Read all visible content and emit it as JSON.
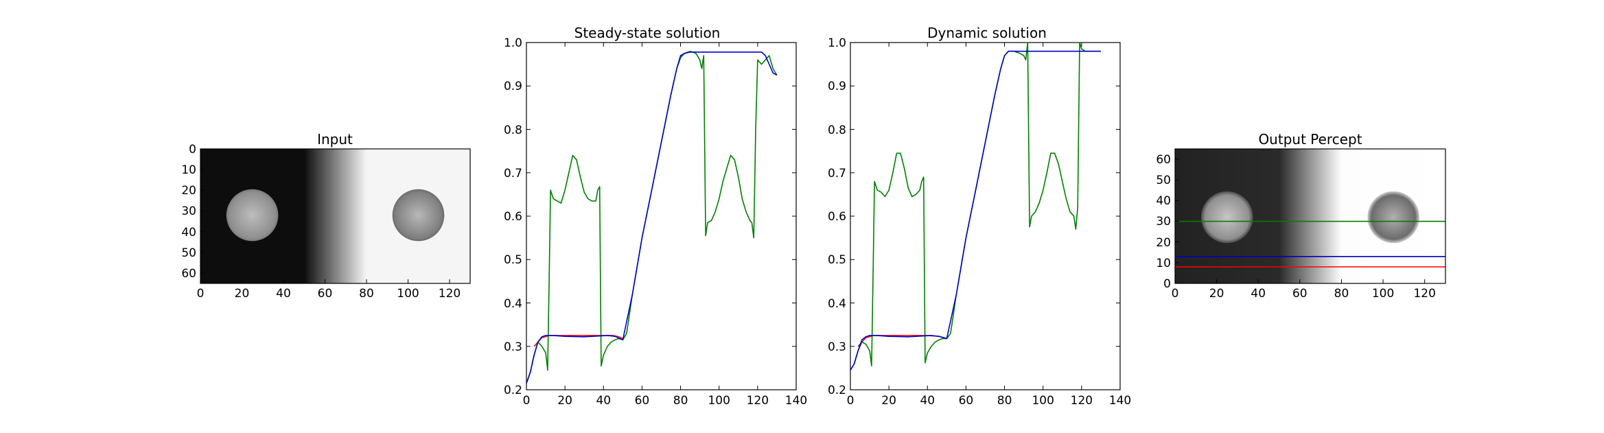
{
  "colors": {
    "red": "#ff0000",
    "blue": "#0000cc",
    "green": "#007f00",
    "axis": "#000000"
  },
  "chart_data": [
    {
      "type": "heatmap",
      "title": "Input",
      "xlim": [
        0,
        130
      ],
      "ylim": [
        65,
        0
      ],
      "xticks": [
        "0",
        "20",
        "40",
        "60",
        "80",
        "100",
        "120"
      ],
      "yticks": [
        "0",
        "10",
        "20",
        "30",
        "40",
        "50",
        "60"
      ],
      "image": {
        "description_values": {
          "left_level": 0.05,
          "right_level": 0.96,
          "ramp_start": 50,
          "ramp_end": 80,
          "disks": [
            {
              "cx": 25,
              "cy": 32,
              "r": 12.5,
              "center": 0.74,
              "edge": 0.55
            },
            {
              "cx": 105,
              "cy": 32,
              "r": 12.5,
              "center": 0.74,
              "edge": 0.5
            }
          ]
        }
      }
    },
    {
      "type": "line",
      "title": "Steady-state solution",
      "xlim": [
        0,
        140
      ],
      "ylim": [
        0.2,
        1.0
      ],
      "xticks": [
        "0",
        "20",
        "40",
        "60",
        "80",
        "100",
        "120",
        "140"
      ],
      "yticks": [
        "0.2",
        "0.3",
        "0.4",
        "0.5",
        "0.6",
        "0.7",
        "0.8",
        "0.9",
        "1.0"
      ],
      "series": [
        {
          "color": "red",
          "x": [
            4,
            8,
            12,
            20,
            30,
            40,
            45,
            48,
            50
          ],
          "y": [
            0.3,
            0.32,
            0.325,
            0.325,
            0.325,
            0.325,
            0.325,
            0.322,
            0.318
          ]
        },
        {
          "color": "blue",
          "x": [
            0,
            2,
            4,
            6,
            8,
            10,
            14,
            20,
            30,
            38,
            42,
            46,
            50,
            55,
            60,
            65,
            70,
            75,
            78,
            80,
            82,
            85,
            90,
            100,
            110,
            118,
            122,
            124,
            126,
            128,
            130
          ],
          "y": [
            0.215,
            0.24,
            0.28,
            0.31,
            0.322,
            0.325,
            0.325,
            0.323,
            0.322,
            0.324,
            0.325,
            0.323,
            0.315,
            0.42,
            0.55,
            0.66,
            0.77,
            0.88,
            0.94,
            0.97,
            0.975,
            0.978,
            0.978,
            0.978,
            0.978,
            0.978,
            0.978,
            0.97,
            0.95,
            0.93,
            0.925
          ]
        },
        {
          "color": "green",
          "x": [
            0,
            2,
            4,
            6,
            8,
            10,
            11,
            11.8,
            12.5,
            14,
            16,
            18,
            20,
            22,
            24,
            26,
            28,
            30,
            32,
            34,
            36,
            37,
            38,
            38.8,
            40,
            42,
            44,
            46,
            48,
            50,
            52,
            55,
            60,
            65,
            70,
            75,
            78,
            80,
            82,
            85,
            88,
            90,
            91,
            92,
            93,
            94,
            96,
            98,
            100,
            102,
            104,
            106,
            108,
            110,
            112,
            114,
            116,
            117,
            118,
            119,
            120,
            122,
            124,
            126,
            128,
            130
          ],
          "y": [
            0.215,
            0.24,
            0.28,
            0.31,
            0.3,
            0.285,
            0.245,
            0.45,
            0.66,
            0.64,
            0.635,
            0.63,
            0.66,
            0.7,
            0.74,
            0.73,
            0.69,
            0.655,
            0.64,
            0.635,
            0.635,
            0.66,
            0.668,
            0.255,
            0.28,
            0.3,
            0.31,
            0.315,
            0.318,
            0.315,
            0.33,
            0.42,
            0.55,
            0.66,
            0.77,
            0.88,
            0.94,
            0.965,
            0.975,
            0.98,
            0.975,
            0.96,
            0.94,
            0.97,
            0.555,
            0.585,
            0.59,
            0.61,
            0.64,
            0.68,
            0.71,
            0.74,
            0.73,
            0.69,
            0.64,
            0.61,
            0.59,
            0.585,
            0.55,
            0.8,
            0.96,
            0.95,
            0.96,
            0.97,
            0.94,
            0.925
          ]
        }
      ]
    },
    {
      "type": "line",
      "title": "Dynamic solution",
      "xlim": [
        0,
        140
      ],
      "ylim": [
        0.2,
        1.0
      ],
      "xticks": [
        "0",
        "20",
        "40",
        "60",
        "80",
        "100",
        "120",
        "140"
      ],
      "yticks": [
        "0.2",
        "0.3",
        "0.4",
        "0.5",
        "0.6",
        "0.7",
        "0.8",
        "0.9",
        "1.0"
      ],
      "series": [
        {
          "color": "red",
          "x": [
            4,
            8,
            12,
            20,
            30,
            40,
            46,
            50
          ],
          "y": [
            0.3,
            0.32,
            0.325,
            0.325,
            0.325,
            0.325,
            0.323,
            0.318
          ]
        },
        {
          "color": "blue",
          "x": [
            0,
            2,
            4,
            6,
            8,
            10,
            14,
            20,
            30,
            38,
            42,
            46,
            50,
            55,
            60,
            65,
            70,
            75,
            78,
            80,
            82,
            85,
            90,
            100,
            110,
            118,
            122,
            126,
            130
          ],
          "y": [
            0.245,
            0.26,
            0.29,
            0.315,
            0.322,
            0.325,
            0.325,
            0.323,
            0.322,
            0.324,
            0.325,
            0.323,
            0.318,
            0.42,
            0.55,
            0.66,
            0.77,
            0.88,
            0.94,
            0.97,
            0.98,
            0.98,
            0.98,
            0.98,
            0.98,
            0.98,
            0.98,
            0.98,
            0.98
          ]
        },
        {
          "color": "green",
          "x": [
            0,
            2,
            4,
            6,
            8,
            10,
            11,
            11.8,
            12.5,
            14,
            16,
            18,
            20,
            22,
            24,
            26,
            28,
            30,
            32,
            34,
            36,
            37,
            38,
            38.8,
            40,
            42,
            44,
            46,
            48,
            50,
            52,
            55,
            60,
            65,
            70,
            75,
            78,
            80,
            82,
            85,
            88,
            90,
            91,
            92,
            93,
            94,
            96,
            98,
            100,
            102,
            104,
            106,
            108,
            110,
            112,
            114,
            116,
            117,
            118,
            119,
            120,
            122,
            124,
            126,
            128,
            130
          ],
          "y": [
            0.245,
            0.26,
            0.29,
            0.31,
            0.305,
            0.29,
            0.255,
            0.47,
            0.68,
            0.66,
            0.655,
            0.645,
            0.66,
            0.7,
            0.745,
            0.745,
            0.71,
            0.665,
            0.645,
            0.65,
            0.66,
            0.68,
            0.69,
            0.262,
            0.285,
            0.3,
            0.31,
            0.315,
            0.318,
            0.318,
            0.33,
            0.42,
            0.55,
            0.66,
            0.77,
            0.88,
            0.94,
            0.97,
            0.98,
            0.98,
            0.975,
            0.97,
            0.96,
            1.0,
            0.575,
            0.6,
            0.61,
            0.63,
            0.66,
            0.7,
            0.745,
            0.745,
            0.72,
            0.68,
            0.64,
            0.61,
            0.6,
            0.57,
            0.62,
            1.0,
            0.985,
            0.98,
            0.98,
            0.98,
            0.98,
            0.98
          ]
        }
      ]
    },
    {
      "type": "heatmap",
      "title": "Output Percept",
      "xlim": [
        0,
        130
      ],
      "ylim": [
        0,
        65
      ],
      "xticks": [
        "0",
        "20",
        "40",
        "60",
        "80",
        "100",
        "120"
      ],
      "yticks": [
        "0",
        "10",
        "20",
        "30",
        "40",
        "50",
        "60"
      ],
      "hlines": [
        {
          "y": 30,
          "color": "green"
        },
        {
          "y": 13,
          "color": "blue"
        },
        {
          "y": 8,
          "color": "red"
        }
      ],
      "image": {
        "description_values": {
          "left_level": 0.13,
          "right_level": 0.99,
          "ramp_start": 50,
          "ramp_end": 80,
          "disks": [
            {
              "cx": 25,
              "cy": 32,
              "r": 12.5,
              "center": 0.78,
              "edge": 0.58
            },
            {
              "cx": 105,
              "cy": 32,
              "r": 12.5,
              "center": 0.72,
              "edge": 0.42
            }
          ]
        }
      }
    }
  ]
}
